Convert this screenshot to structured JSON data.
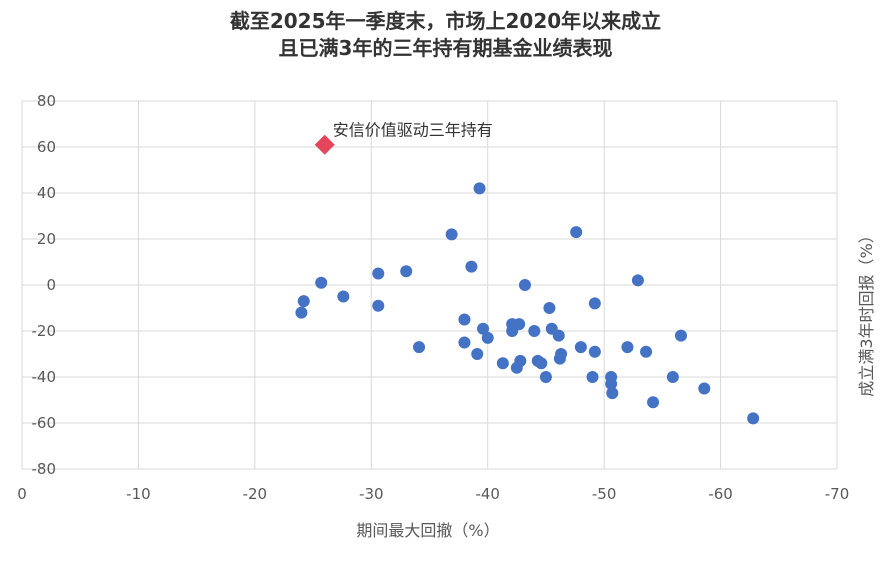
{
  "chart_data": {
    "type": "scatter",
    "title": [
      "截至2025年一季度末，市场上2020年以来成立",
      "且已满3年的三年持有期基金业绩表现"
    ],
    "xlabel": "期间最大回撤（%）",
    "ylabel": "成立满3年时回报（%）",
    "xlim": [
      0,
      -70
    ],
    "ylim": [
      -80,
      80
    ],
    "x_ticks": [
      0,
      -10,
      -20,
      -30,
      -40,
      -50,
      -60,
      -70
    ],
    "y_ticks": [
      80,
      60,
      40,
      20,
      0,
      -20,
      -40,
      -60,
      -80
    ],
    "x_tick_labels": [
      "0",
      "-10",
      "-20",
      "-30",
      "-40",
      "-50",
      "-60",
      "-70"
    ],
    "y_tick_labels": [
      "80",
      "60",
      "40",
      "20",
      "0",
      "-20",
      "-40",
      "-60",
      "-80"
    ],
    "grid": true,
    "colors": {
      "points": "#4472C4",
      "highlight": "#E5455A",
      "grid": "#D9D9D9"
    },
    "highlight": {
      "label": "安信价值驱动三年持有",
      "x": -26,
      "y": 61,
      "marker": "diamond"
    },
    "points": [
      {
        "x": -24.0,
        "y": -12
      },
      {
        "x": -24.2,
        "y": -7
      },
      {
        "x": -25.7,
        "y": 1
      },
      {
        "x": -27.6,
        "y": -5
      },
      {
        "x": -30.6,
        "y": 5
      },
      {
        "x": -30.6,
        "y": -9
      },
      {
        "x": -33.0,
        "y": 6
      },
      {
        "x": -34.1,
        "y": -27
      },
      {
        "x": -36.9,
        "y": 22
      },
      {
        "x": -38.0,
        "y": -15
      },
      {
        "x": -38.0,
        "y": -25
      },
      {
        "x": -38.6,
        "y": 8
      },
      {
        "x": -39.1,
        "y": -30
      },
      {
        "x": -39.3,
        "y": 42
      },
      {
        "x": -39.6,
        "y": -19
      },
      {
        "x": -40.0,
        "y": -23
      },
      {
        "x": -41.3,
        "y": -34
      },
      {
        "x": -42.1,
        "y": -17
      },
      {
        "x": -42.1,
        "y": -20
      },
      {
        "x": -42.5,
        "y": -36
      },
      {
        "x": -42.7,
        "y": -17
      },
      {
        "x": -42.8,
        "y": -33
      },
      {
        "x": -43.2,
        "y": 0
      },
      {
        "x": -44.0,
        "y": -20
      },
      {
        "x": -44.3,
        "y": -33
      },
      {
        "x": -44.6,
        "y": -34
      },
      {
        "x": -45.0,
        "y": -40
      },
      {
        "x": -45.3,
        "y": -10
      },
      {
        "x": -45.5,
        "y": -19
      },
      {
        "x": -46.1,
        "y": -22
      },
      {
        "x": -46.2,
        "y": -32
      },
      {
        "x": -46.3,
        "y": -30
      },
      {
        "x": -47.6,
        "y": 23
      },
      {
        "x": -48.0,
        "y": -27
      },
      {
        "x": -49.0,
        "y": -40
      },
      {
        "x": -49.2,
        "y": -8
      },
      {
        "x": -49.2,
        "y": -29
      },
      {
        "x": -50.6,
        "y": -40
      },
      {
        "x": -50.6,
        "y": -43
      },
      {
        "x": -50.7,
        "y": -47
      },
      {
        "x": -52.0,
        "y": -27
      },
      {
        "x": -52.9,
        "y": 2
      },
      {
        "x": -53.6,
        "y": -29
      },
      {
        "x": -54.2,
        "y": -51
      },
      {
        "x": -55.9,
        "y": -40
      },
      {
        "x": -56.6,
        "y": -22
      },
      {
        "x": -58.6,
        "y": -45
      },
      {
        "x": -62.8,
        "y": -58
      }
    ]
  }
}
